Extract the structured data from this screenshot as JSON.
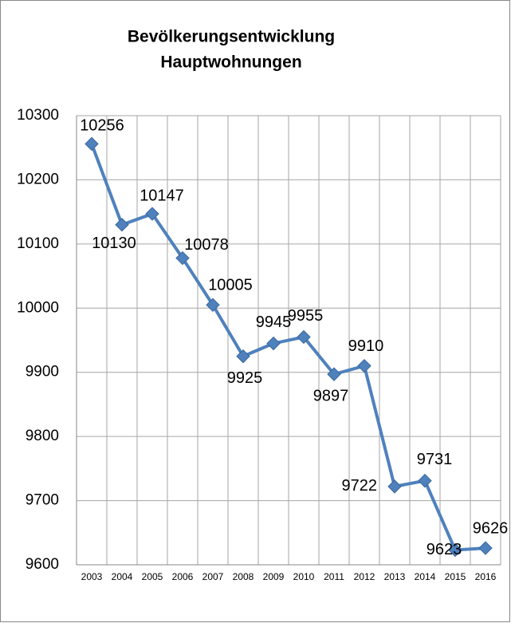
{
  "chart_data": {
    "type": "line",
    "title": [
      "Bevölkerungsentwicklung",
      "Hauptwohnungen"
    ],
    "categories": [
      "2003",
      "2004",
      "2005",
      "2006",
      "2007",
      "2008",
      "2009",
      "2010",
      "2011",
      "2012",
      "2013",
      "2014",
      "2015",
      "2016"
    ],
    "values": [
      10256,
      10130,
      10147,
      10078,
      10005,
      9925,
      9945,
      9955,
      9897,
      9910,
      9722,
      9731,
      9623,
      9626
    ],
    "color": "#4f81bd",
    "ylim": [
      9600,
      10300
    ],
    "yticks": [
      9600,
      9700,
      9800,
      9900,
      10000,
      10100,
      10200,
      10300
    ],
    "grid": true
  }
}
